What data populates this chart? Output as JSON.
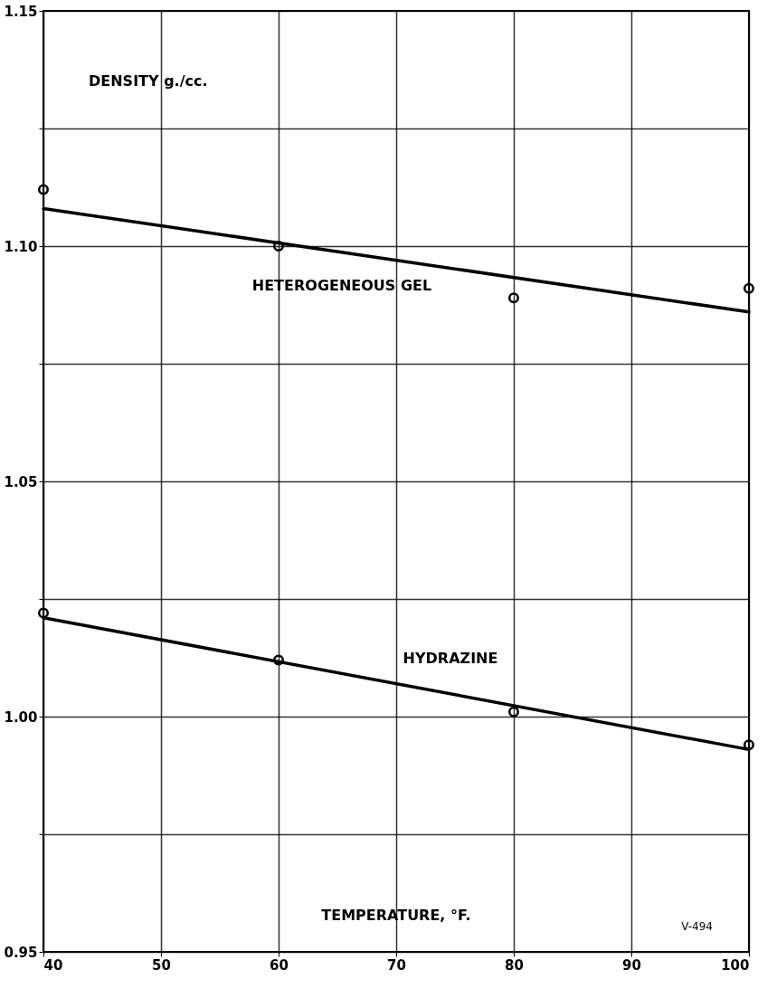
{
  "chart_data": {
    "type": "line",
    "xlabel": "TEMPERATURE, °F.",
    "ylabel": "DENSITY g./cc.",
    "annotations": [
      "V-494"
    ],
    "xlim": [
      40,
      100
    ],
    "xticks": [
      40,
      50,
      60,
      70,
      80,
      90,
      100
    ],
    "ylim": [
      0.95,
      1.15
    ],
    "yticks": [
      {
        "value": 0.95,
        "label": "0.95"
      },
      {
        "value": 0.975,
        "label": null
      },
      {
        "value": 1.0,
        "label": "1.00"
      },
      {
        "value": 1.025,
        "label": null
      },
      {
        "value": 1.05,
        "label": "1.05"
      },
      {
        "value": 1.075,
        "label": null
      },
      {
        "value": 1.1,
        "label": "1.10"
      },
      {
        "value": 1.125,
        "label": null
      },
      {
        "value": 1.15,
        "label": "1.15"
      }
    ],
    "grid": true,
    "line_style": "solid",
    "series": [
      {
        "name": "HETEROGENEOUS GEL",
        "color": "#000000",
        "x": [
          40,
          100
        ],
        "values": [
          1.108,
          1.086
        ]
      },
      {
        "type": "scatter",
        "marker": "circle",
        "color": "#000000",
        "x": [
          40,
          60,
          80,
          100
        ],
        "values": [
          1.112,
          1.1,
          1.089,
          1.091
        ]
      },
      {
        "name": "HYDRAZINE",
        "color": "#000000",
        "x": [
          40,
          100
        ],
        "values": [
          1.021,
          0.993
        ]
      },
      {
        "type": "scatter",
        "marker": "circle",
        "color": "#000000",
        "x": [
          40,
          60,
          80,
          100
        ],
        "values": [
          1.022,
          1.012,
          1.001,
          0.994
        ]
      }
    ]
  }
}
